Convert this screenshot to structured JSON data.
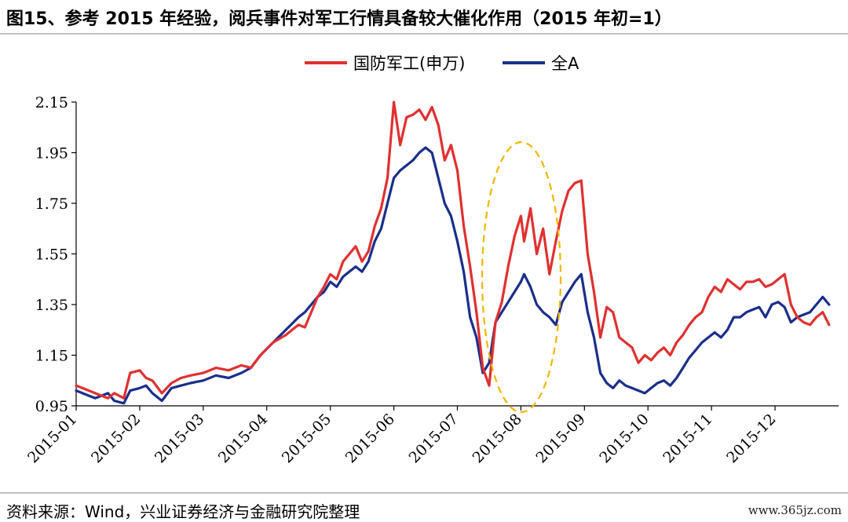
{
  "title": "图15、参考 2015 年经验，阅兵事件对军工行情具备较大催化作用（2015 年初=1）",
  "source": "资料来源：Wind，兴业证券经济与金融研究院整理",
  "watermark": "www.365jz.com",
  "chart_data": {
    "type": "line",
    "title": "图15、参考 2015 年经验，阅兵事件对军工行情具备较大催化作用（2015 年初=1）",
    "xlabel": "",
    "ylabel": "",
    "ylim": [
      0.95,
      2.15
    ],
    "yticks": [
      "2.15",
      "1.95",
      "1.75",
      "1.55",
      "1.35",
      "1.15",
      "0.95"
    ],
    "ytick_values": [
      2.15,
      1.95,
      1.75,
      1.55,
      1.35,
      1.15,
      0.95
    ],
    "xticks": [
      "2015-01",
      "2015-02",
      "2015-03",
      "2015-04",
      "2015-05",
      "2015-06",
      "2015-07",
      "2015-08",
      "2015-09",
      "2015-10",
      "2015-11",
      "2015-12"
    ],
    "legend_position": "top-center",
    "grid": false,
    "annotation": "dashed yellow ellipse highlighting August 2015",
    "series": [
      {
        "name": "国防军工(申万)",
        "color": "#e03030",
        "x": [
          0,
          0.1,
          0.2,
          0.3,
          0.4,
          0.5,
          0.6,
          0.75,
          0.85,
          1.0,
          1.1,
          1.2,
          1.35,
          1.5,
          1.65,
          1.8,
          2.0,
          2.2,
          2.4,
          2.6,
          2.75,
          2.9,
          3.1,
          3.3,
          3.5,
          3.6,
          3.7,
          3.8,
          3.9,
          4.0,
          4.1,
          4.2,
          4.3,
          4.4,
          4.5,
          4.6,
          4.7,
          4.8,
          4.9,
          5.0,
          5.1,
          5.2,
          5.3,
          5.4,
          5.5,
          5.6,
          5.7,
          5.8,
          5.9,
          6.0,
          6.1,
          6.2,
          6.3,
          6.4,
          6.5,
          6.6,
          6.7,
          6.8,
          6.9,
          7.0,
          7.05,
          7.15,
          7.25,
          7.35,
          7.45,
          7.55,
          7.65,
          7.75,
          7.85,
          7.95,
          8.05,
          8.15,
          8.25,
          8.35,
          8.45,
          8.55,
          8.65,
          8.75,
          8.85,
          8.95,
          9.05,
          9.15,
          9.25,
          9.35,
          9.45,
          9.55,
          9.65,
          9.75,
          9.85,
          9.95,
          10.05,
          10.15,
          10.25,
          10.35,
          10.45,
          10.55,
          10.65,
          10.75,
          10.85,
          10.95,
          11.05,
          11.15,
          11.25,
          11.35,
          11.45,
          11.55,
          11.65,
          11.75,
          11.85
        ],
        "values": [
          1.03,
          1.02,
          1.01,
          1.0,
          0.99,
          0.98,
          1.0,
          0.98,
          1.08,
          1.09,
          1.06,
          1.05,
          1.0,
          1.04,
          1.06,
          1.07,
          1.08,
          1.1,
          1.09,
          1.11,
          1.1,
          1.15,
          1.2,
          1.23,
          1.27,
          1.26,
          1.32,
          1.38,
          1.42,
          1.47,
          1.45,
          1.52,
          1.55,
          1.58,
          1.52,
          1.56,
          1.66,
          1.73,
          1.85,
          2.15,
          1.98,
          2.09,
          2.1,
          2.12,
          2.08,
          2.13,
          2.06,
          1.92,
          1.98,
          1.88,
          1.66,
          1.5,
          1.32,
          1.1,
          1.03,
          1.28,
          1.36,
          1.5,
          1.62,
          1.7,
          1.6,
          1.73,
          1.55,
          1.65,
          1.47,
          1.6,
          1.72,
          1.8,
          1.83,
          1.84,
          1.55,
          1.4,
          1.22,
          1.34,
          1.32,
          1.22,
          1.2,
          1.18,
          1.12,
          1.15,
          1.13,
          1.16,
          1.18,
          1.15,
          1.2,
          1.23,
          1.27,
          1.3,
          1.32,
          1.38,
          1.42,
          1.4,
          1.45,
          1.43,
          1.41,
          1.44,
          1.44,
          1.45,
          1.42,
          1.43,
          1.45,
          1.47,
          1.35,
          1.3,
          1.28,
          1.27,
          1.3,
          1.32,
          1.27
        ]
      },
      {
        "name": "全A",
        "color": "#1a2f8a",
        "x": [
          0,
          0.1,
          0.2,
          0.3,
          0.4,
          0.5,
          0.6,
          0.75,
          0.85,
          1.0,
          1.1,
          1.2,
          1.35,
          1.5,
          1.65,
          1.8,
          2.0,
          2.2,
          2.4,
          2.6,
          2.75,
          2.9,
          3.1,
          3.3,
          3.5,
          3.6,
          3.7,
          3.8,
          3.9,
          4.0,
          4.1,
          4.2,
          4.3,
          4.4,
          4.5,
          4.6,
          4.7,
          4.8,
          4.9,
          5.0,
          5.1,
          5.2,
          5.3,
          5.4,
          5.5,
          5.6,
          5.7,
          5.8,
          5.9,
          6.0,
          6.1,
          6.2,
          6.3,
          6.4,
          6.5,
          6.6,
          6.7,
          6.8,
          6.9,
          7.0,
          7.05,
          7.15,
          7.25,
          7.35,
          7.45,
          7.55,
          7.65,
          7.75,
          7.85,
          7.95,
          8.05,
          8.15,
          8.25,
          8.35,
          8.45,
          8.55,
          8.65,
          8.75,
          8.85,
          8.95,
          9.05,
          9.15,
          9.25,
          9.35,
          9.45,
          9.55,
          9.65,
          9.75,
          9.85,
          9.95,
          10.05,
          10.15,
          10.25,
          10.35,
          10.45,
          10.55,
          10.65,
          10.75,
          10.85,
          10.95,
          11.05,
          11.15,
          11.25,
          11.35,
          11.45,
          11.55,
          11.65,
          11.75,
          11.85
        ],
        "values": [
          1.01,
          1.0,
          0.99,
          0.98,
          0.99,
          1.0,
          0.97,
          0.96,
          1.01,
          1.02,
          1.03,
          1.0,
          0.97,
          1.02,
          1.03,
          1.04,
          1.05,
          1.07,
          1.06,
          1.08,
          1.1,
          1.15,
          1.2,
          1.25,
          1.3,
          1.32,
          1.35,
          1.38,
          1.4,
          1.44,
          1.42,
          1.46,
          1.48,
          1.5,
          1.48,
          1.52,
          1.6,
          1.65,
          1.75,
          1.85,
          1.88,
          1.9,
          1.92,
          1.95,
          1.97,
          1.95,
          1.85,
          1.75,
          1.7,
          1.6,
          1.48,
          1.3,
          1.22,
          1.08,
          1.12,
          1.28,
          1.32,
          1.36,
          1.4,
          1.44,
          1.47,
          1.42,
          1.35,
          1.32,
          1.3,
          1.27,
          1.36,
          1.4,
          1.44,
          1.47,
          1.32,
          1.22,
          1.08,
          1.04,
          1.02,
          1.05,
          1.03,
          1.02,
          1.01,
          1.0,
          1.02,
          1.04,
          1.05,
          1.03,
          1.06,
          1.1,
          1.14,
          1.17,
          1.2,
          1.22,
          1.24,
          1.22,
          1.25,
          1.3,
          1.3,
          1.32,
          1.33,
          1.34,
          1.3,
          1.35,
          1.36,
          1.34,
          1.28,
          1.3,
          1.31,
          1.32,
          1.35,
          1.38,
          1.35
        ]
      }
    ]
  }
}
